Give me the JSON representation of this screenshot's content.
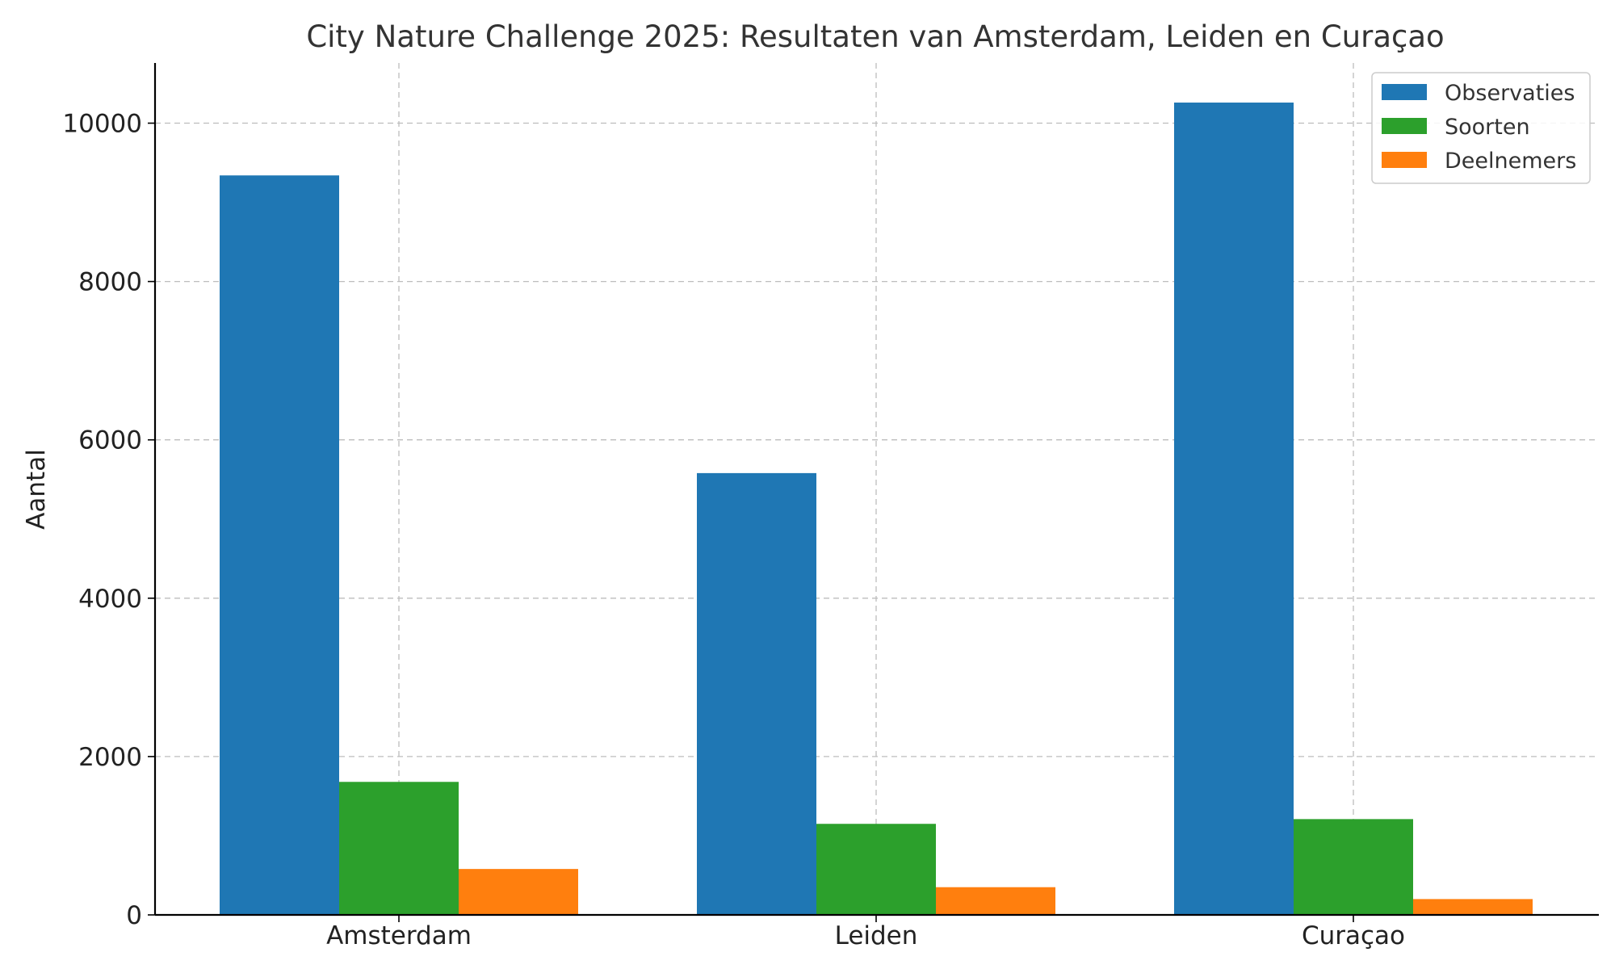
{
  "chart_data": {
    "type": "bar",
    "title": "City Nature Challenge 2025: Resultaten van Amsterdam, Leiden en Curaçao",
    "xlabel": "",
    "ylabel": "Aantal",
    "categories": [
      "Amsterdam",
      "Leiden",
      "Curaçao"
    ],
    "series": [
      {
        "name": "Observaties",
        "values": [
          9340,
          5580,
          10260
        ],
        "color": "#1f77b4"
      },
      {
        "name": "Soorten",
        "values": [
          1680,
          1150,
          1210
        ],
        "color": "#2ca02c"
      },
      {
        "name": "Deelnemers",
        "values": [
          580,
          350,
          200
        ],
        "color": "#ff7f0e"
      }
    ],
    "ylim": [
      0,
      10760
    ],
    "yticks": [
      0,
      2000,
      4000,
      6000,
      8000,
      10000
    ],
    "grid": true,
    "legend_position": "top-right"
  }
}
